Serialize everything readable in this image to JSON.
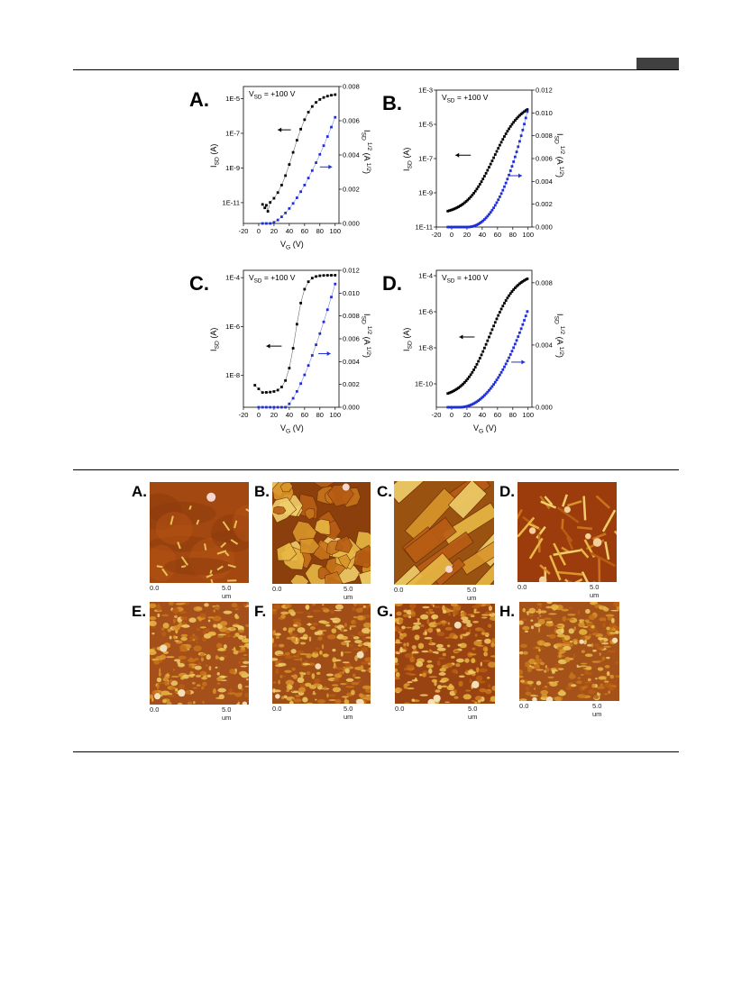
{
  "header": {
    "tab_color": "#404040"
  },
  "chart_data": [
    {
      "type": "scatter",
      "panel": "A.",
      "annotation": "V_SD = +100 V",
      "xlabel": "V_G (V)",
      "ylabel_left": "I_SD (A)",
      "ylabel_right": "I_SD^1/2 (A^1/2)",
      "xlim": [
        -20,
        105
      ],
      "xticks": [
        -20,
        0,
        20,
        40,
        60,
        80,
        100
      ],
      "ylim_left_log": [
        -12.2,
        -4.3
      ],
      "yticks_left": [
        "1E-5",
        "1E-7",
        "1E-9",
        "1E-11"
      ],
      "yticks_left_values": [
        -5,
        -7,
        -9,
        -11
      ],
      "ylim_right": [
        0,
        0.008
      ],
      "yticks_right": [
        "0.000",
        "0.002",
        "0.004",
        "0.006",
        "0.008"
      ],
      "yticks_right_values": [
        0,
        0.002,
        0.004,
        0.006,
        0.008
      ],
      "series": [
        {
          "name": "I_SD",
          "axis": "left",
          "color": "#000000",
          "marker": "square",
          "model": "logSig",
          "params": [
            -11.5,
            -4.7,
            45,
            12
          ],
          "x_start": 5,
          "x_end": 100,
          "step": 5,
          "extra_points": [
            [
              5,
              -11.1
            ],
            [
              8,
              -11.3
            ],
            [
              12,
              -11.5
            ]
          ]
        },
        {
          "name": "I_SD^1/2",
          "axis": "right",
          "color": "#1f2fd6",
          "marker": "square",
          "model": "sqrtPow",
          "params": [
            15,
            100,
            0.0062,
            1.6
          ],
          "x_start": 5,
          "x_end": 100,
          "step": 5
        }
      ],
      "arrows": [
        {
          "dir": "left",
          "color": "#000000",
          "y_axis": "left",
          "y": -6.8,
          "x0": 42,
          "x1": 25
        },
        {
          "dir": "right",
          "color": "#1f2fd6",
          "y_axis": "right",
          "y": 0.0033,
          "x0": 80,
          "x1": 96
        }
      ]
    },
    {
      "type": "scatter",
      "panel": "B.",
      "annotation": "V_SD = +100 V",
      "xlabel": "",
      "ylabel_left": "I_SD (A)",
      "ylabel_right": "I_SD^1/2 (A^1/2)",
      "xlim": [
        -20,
        105
      ],
      "xticks": [
        -20,
        0,
        20,
        40,
        60,
        80,
        100
      ],
      "ylim_left_log": [
        -11,
        -3
      ],
      "yticks_left": [
        "1E-3",
        "1E-5",
        "1E-7",
        "1E-9",
        "1E-11"
      ],
      "yticks_left_values": [
        -3,
        -5,
        -7,
        -9,
        -11
      ],
      "ylim_right": [
        0,
        0.012
      ],
      "yticks_right": [
        "0.000",
        "0.002",
        "0.004",
        "0.006",
        "0.008",
        "0.010",
        "0.012"
      ],
      "yticks_right_values": [
        0,
        0.002,
        0.004,
        0.006,
        0.008,
        0.01,
        0.012
      ],
      "series": [
        {
          "name": "I_SD",
          "axis": "left",
          "color": "#000000",
          "marker": "square",
          "model": "logSig",
          "params": [
            -10.3,
            -3.6,
            55,
            18
          ],
          "x_start": -5,
          "x_end": 100,
          "step": 2,
          "floor": -10.2,
          "floor_until": 14
        },
        {
          "name": "I_SD^1/2",
          "axis": "right",
          "color": "#1f2fd6",
          "marker": "square",
          "model": "sqrtPow",
          "params": [
            20,
            100,
            0.0104,
            2.2
          ],
          "x_start": -5,
          "x_end": 100,
          "step": 2
        }
      ],
      "arrows": [
        {
          "dir": "left",
          "color": "#000000",
          "y_axis": "left",
          "y": -6.8,
          "x0": 25,
          "x1": 5
        },
        {
          "dir": "right",
          "color": "#1f2fd6",
          "y_axis": "right",
          "y": 0.0045,
          "x0": 75,
          "x1": 92
        }
      ]
    },
    {
      "type": "scatter",
      "panel": "C.",
      "annotation": "V_SD = +100 V",
      "xlabel": "V_G (V)",
      "ylabel_left": "I_SD (A)",
      "ylabel_right": "I_SD^1/2 (A^1/2)",
      "xlim": [
        -20,
        105
      ],
      "xticks": [
        -20,
        0,
        20,
        40,
        60,
        80,
        100
      ],
      "ylim_left_log": [
        -9.3,
        -3.7
      ],
      "yticks_left": [
        "1E-4",
        "1E-6",
        "1E-8"
      ],
      "yticks_left_values": [
        -4,
        -6,
        -8
      ],
      "ylim_right": [
        0,
        0.012
      ],
      "yticks_right": [
        "0.000",
        "0.002",
        "0.004",
        "0.006",
        "0.008",
        "0.010",
        "0.012"
      ],
      "yticks_right_values": [
        0,
        0.002,
        0.004,
        0.006,
        0.008,
        0.01,
        0.012
      ],
      "series": [
        {
          "name": "I_SD",
          "axis": "left",
          "color": "#000000",
          "marker": "square",
          "model": "logSig",
          "params": [
            -8.7,
            -3.9,
            48,
            6
          ],
          "x_start": -5,
          "x_end": 100,
          "step": 5,
          "floor": -8.7,
          "floor_until": 30,
          "extra_points": [
            [
              -5,
              -8.4
            ],
            [
              0,
              -8.55
            ]
          ]
        },
        {
          "name": "I_SD^1/2",
          "axis": "right",
          "color": "#1f2fd6",
          "marker": "square",
          "model": "sqrtPow",
          "params": [
            35,
            100,
            0.0108,
            1.4
          ],
          "x_start": 0,
          "x_end": 100,
          "step": 5
        }
      ],
      "arrows": [
        {
          "dir": "left",
          "color": "#000000",
          "y_axis": "left",
          "y": -6.8,
          "x0": 30,
          "x1": 10
        },
        {
          "dir": "right",
          "color": "#1f2fd6",
          "y_axis": "right",
          "y": 0.0047,
          "x0": 78,
          "x1": 94
        }
      ]
    },
    {
      "type": "scatter",
      "panel": "D.",
      "annotation": "V_SD = +100 V",
      "xlabel": "V_G (V)",
      "ylabel_left": "I_SD (A)",
      "ylabel_right": "I_SD^1/2 (A^1/2)",
      "xlim": [
        -20,
        105
      ],
      "xticks": [
        -20,
        0,
        20,
        40,
        60,
        80,
        100
      ],
      "ylim_left_log": [
        -11.3,
        -3.7
      ],
      "yticks_left": [
        "1E-4",
        "1E-6",
        "1E-8",
        "1E-10"
      ],
      "yticks_left_values": [
        -4,
        -6,
        -8,
        -10
      ],
      "ylim_right": [
        0,
        0.0088
      ],
      "yticks_right": [
        "0.000",
        "0.004",
        "0.008"
      ],
      "yticks_right_values": [
        0,
        0.004,
        0.008
      ],
      "series": [
        {
          "name": "I_SD",
          "axis": "left",
          "color": "#000000",
          "marker": "square",
          "model": "logSig",
          "params": [
            -10.8,
            -3.8,
            50,
            17
          ],
          "x_start": -5,
          "x_end": 100,
          "step": 2,
          "floor": -10.6,
          "floor_until": 12
        },
        {
          "name": "I_SD^1/2",
          "axis": "right",
          "color": "#1f2fd6",
          "marker": "square",
          "model": "sqrtPow",
          "params": [
            10,
            100,
            0.0063,
            2.1
          ],
          "x_start": -5,
          "x_end": 100,
          "step": 2
        }
      ],
      "arrows": [
        {
          "dir": "left",
          "color": "#000000",
          "y_axis": "left",
          "y": -7.4,
          "x0": 30,
          "x1": 10
        },
        {
          "dir": "right",
          "color": "#1f2fd6",
          "y_axis": "right",
          "y": 0.0029,
          "x0": 78,
          "x1": 96
        }
      ]
    }
  ],
  "afm": {
    "scale_start": "0.0",
    "scale_end": "5.0 um",
    "panels": [
      {
        "label": "A.",
        "style": "smooth",
        "base": "#a24810",
        "seed": 3
      },
      {
        "label": "B.",
        "style": "grains",
        "base": "#8a3f0c",
        "seed": 7
      },
      {
        "label": "C.",
        "style": "plates",
        "base": "#9a5210",
        "seed": 11
      },
      {
        "label": "D.",
        "style": "rods",
        "base": "#9c3c0c",
        "seed": 5
      },
      {
        "label": "E.",
        "style": "granular",
        "base": "#a5501a",
        "seed": 13
      },
      {
        "label": "F.",
        "style": "granular",
        "base": "#a04d18",
        "seed": 17
      },
      {
        "label": "G.",
        "style": "granular",
        "base": "#9a4312",
        "seed": 19
      },
      {
        "label": "H.",
        "style": "granular",
        "base": "#a4521a",
        "seed": 23
      }
    ]
  }
}
